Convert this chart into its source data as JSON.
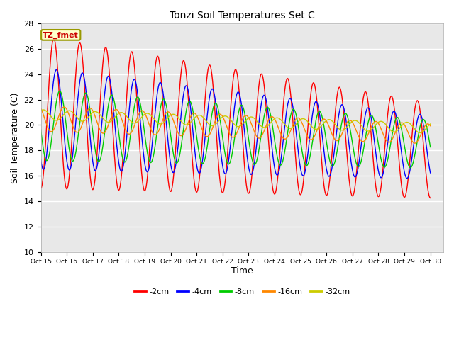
{
  "title": "Tonzi Soil Temperatures Set C",
  "xlabel": "Time",
  "ylabel": "Soil Temperature (C)",
  "ylim": [
    10,
    28
  ],
  "xlim": [
    0,
    15.5
  ],
  "fig_facecolor": "#ffffff",
  "plot_bg_color": "#e8e8e8",
  "series_colors": {
    "-2cm": "#ff0000",
    "-4cm": "#0000ff",
    "-8cm": "#00cc00",
    "-16cm": "#ff8800",
    "-32cm": "#cccc00"
  },
  "legend_label": "TZ_fmet",
  "x_tick_labels": [
    "Oct 15",
    "Oct 16",
    "Oct 17",
    "Oct 18",
    "Oct 19",
    "Oct 20",
    "Oct 21",
    "Oct 22",
    "Oct 23",
    "Oct 24",
    "Oct 25",
    "Oct 26",
    "Oct 27",
    "Oct 28",
    "Oct 29",
    "Oct 30"
  ],
  "yticks": [
    10,
    12,
    14,
    16,
    18,
    20,
    22,
    24,
    26,
    28
  ],
  "figsize": [
    6.4,
    4.8
  ],
  "dpi": 100
}
